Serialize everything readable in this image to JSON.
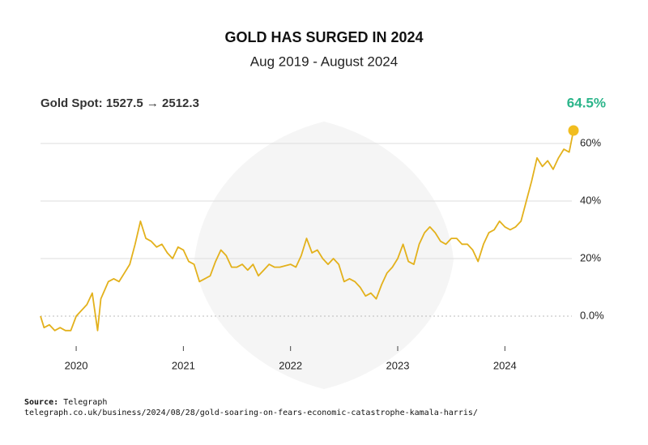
{
  "chart_data": {
    "type": "line",
    "title": "GOLD HAS SURGED IN 2024",
    "subtitle": "Aug 2019 - August 2024",
    "header_left": "Gold Spot: 1527.5 → 2512.3",
    "header_right": "64.5%",
    "source_label": "Source:",
    "source_name": "Telegraph",
    "source_url": "telegraph.co.uk/business/2024/08/28/gold-soaring-on-fears-economic-catastrophe-kamala-harris/",
    "color": "#e3b11c",
    "grid": true,
    "xlim": [
      2019.667,
      2024.64
    ],
    "xticks": [
      2020,
      2021,
      2022,
      2023,
      2024
    ],
    "ylim": [
      -12,
      66
    ],
    "yticks": [
      {
        "value": 0,
        "label": "0.0%"
      },
      {
        "value": 20,
        "label": "20%"
      },
      {
        "value": 40,
        "label": "40%"
      },
      {
        "value": 60,
        "label": "60%"
      }
    ],
    "x": [
      2019.667,
      2019.7,
      2019.75,
      2019.8,
      2019.85,
      2019.9,
      2019.95,
      2020.0,
      2020.05,
      2020.1,
      2020.15,
      2020.2,
      2020.23,
      2020.3,
      2020.35,
      2020.4,
      2020.45,
      2020.5,
      2020.55,
      2020.6,
      2020.65,
      2020.7,
      2020.75,
      2020.8,
      2020.85,
      2020.9,
      2020.95,
      2021.0,
      2021.05,
      2021.1,
      2021.15,
      2021.2,
      2021.25,
      2021.3,
      2021.35,
      2021.4,
      2021.45,
      2021.5,
      2021.55,
      2021.6,
      2021.65,
      2021.7,
      2021.75,
      2021.8,
      2021.85,
      2021.9,
      2022.0,
      2022.05,
      2022.1,
      2022.15,
      2022.2,
      2022.25,
      2022.3,
      2022.35,
      2022.4,
      2022.45,
      2022.5,
      2022.55,
      2022.6,
      2022.65,
      2022.7,
      2022.75,
      2022.8,
      2022.85,
      2022.9,
      2022.95,
      2023.0,
      2023.05,
      2023.1,
      2023.15,
      2023.2,
      2023.25,
      2023.3,
      2023.35,
      2023.4,
      2023.45,
      2023.5,
      2023.55,
      2023.6,
      2023.65,
      2023.7,
      2023.75,
      2023.8,
      2023.85,
      2023.9,
      2023.95,
      2024.0,
      2024.05,
      2024.1,
      2024.15,
      2024.2,
      2024.25,
      2024.3,
      2024.35,
      2024.4,
      2024.45,
      2024.5,
      2024.55,
      2024.6,
      2024.64
    ],
    "values": [
      0,
      -4,
      -3,
      -5,
      -4,
      -5,
      -5,
      0,
      2,
      4,
      8,
      -5,
      6,
      12,
      13,
      12,
      15,
      18,
      25,
      33,
      27,
      26,
      24,
      25,
      22,
      20,
      24,
      23,
      19,
      18,
      12,
      13,
      14,
      19,
      23,
      21,
      17,
      17,
      18,
      16,
      18,
      14,
      16,
      18,
      17,
      17,
      18,
      17,
      21,
      27,
      22,
      23,
      20,
      18,
      20,
      18,
      12,
      13,
      12,
      10,
      7,
      8,
      6,
      11,
      15,
      17,
      20,
      25,
      19,
      18,
      25,
      29,
      31,
      29,
      26,
      25,
      27,
      27,
      25,
      25,
      23,
      19,
      25,
      29,
      30,
      33,
      31,
      30,
      31,
      33,
      40,
      47,
      55,
      52,
      54,
      51,
      55,
      58,
      57,
      64.5
    ]
  }
}
